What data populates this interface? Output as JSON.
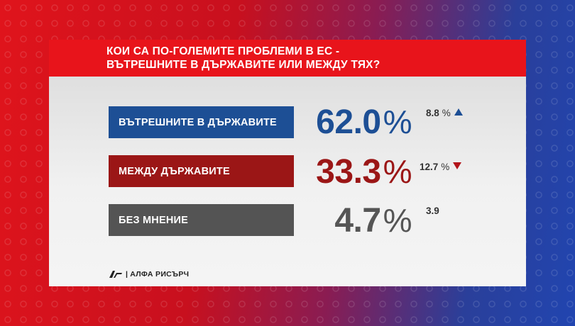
{
  "title_lines": [
    "КОИ СА ПО-ГОЛЕМИТЕ ПРОБЛЕМИ В ЕС -",
    "ВЪТРЕШНИТЕ В ДЪРЖАВИТЕ ИЛИ МЕЖДУ ТЯХ?"
  ],
  "colors": {
    "title_bar": "#e8141b",
    "row1": "#1d4f95",
    "row2": "#9b1616",
    "row3": "#545454",
    "up": "#1d4f95",
    "down": "#b3141a"
  },
  "chart_data": {
    "type": "table",
    "title": "КОИ СА ПО-ГОЛЕМИТЕ ПРОБЛЕМИ В ЕС - ВЪТРЕШНИТЕ В ДЪРЖАВИТЕ ИЛИ МЕЖДУ ТЯХ?",
    "rows": [
      {
        "label": "ВЪТРЕШНИТЕ В ДЪРЖАВИТЕ",
        "value": "62.0",
        "value_unit": "%",
        "change": "8.8",
        "change_unit": "%",
        "trend": "up"
      },
      {
        "label": "МЕЖДУ ДЪРЖАВИТЕ",
        "value": "33.3",
        "value_unit": "%",
        "change": "12.7",
        "change_unit": "%",
        "trend": "down"
      },
      {
        "label": "БЕЗ МНЕНИЕ",
        "value": "4.7",
        "value_unit": "%",
        "change": "3.9",
        "change_unit": "",
        "trend": "none"
      }
    ]
  },
  "source": "АЛФА РИСЪРЧ"
}
